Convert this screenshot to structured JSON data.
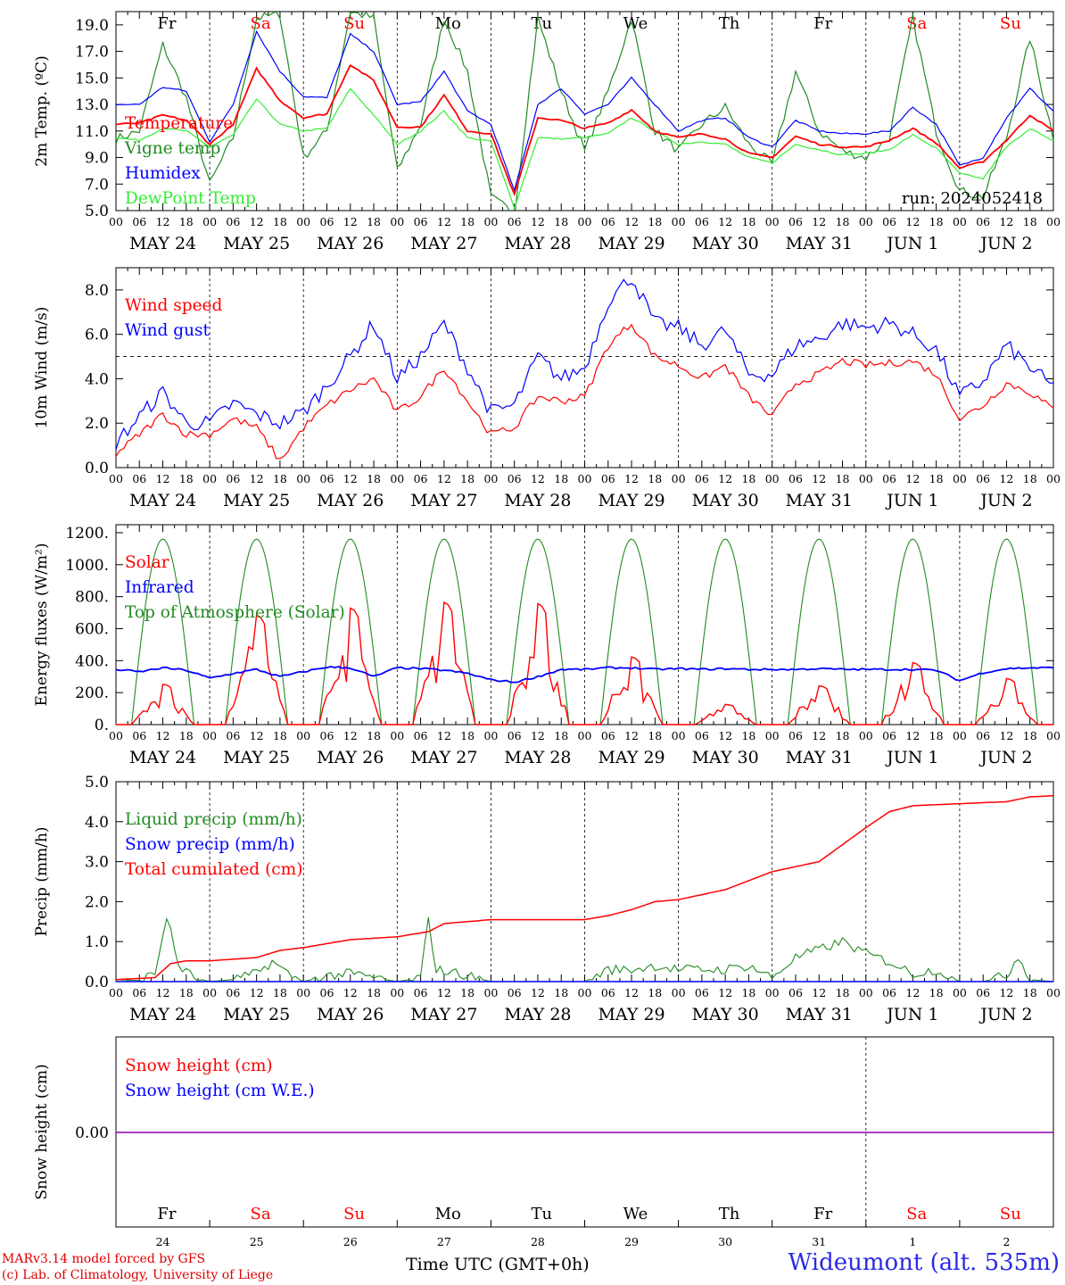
{
  "colors": {
    "red": "#ff0000",
    "green": "#228b22",
    "blue": "#0000ff",
    "lightgreen": "#33ee33",
    "purple": "#8800aa",
    "daySat": "#ff0000",
    "dayWeek": "#000000"
  },
  "day_names": [
    "Fr",
    "Sa",
    "Su",
    "Mo",
    "Tu",
    "We",
    "Th",
    "Fr",
    "Sa",
    "Su"
  ],
  "weekend_idx": [
    1,
    2,
    8,
    9
  ],
  "date_labels": [
    "MAY 24",
    "MAY 25",
    "MAY 26",
    "MAY 27",
    "MAY 28",
    "MAY 29",
    "MAY 30",
    "MAY 31",
    "JUN  1",
    "JUN  2"
  ],
  "hour_labels": [
    "00",
    "06",
    "12",
    "18"
  ],
  "day_numbers": [
    "24",
    "25",
    "26",
    "27",
    "28",
    "29",
    "30",
    "31",
    "1",
    "2"
  ],
  "run_label": "run: 2024052418",
  "time_axis_label": "Time UTC (GMT+0h)",
  "credits": [
    "MARv3.14 model forced by GFS",
    "(c) Lab. of Climatology, University of Liege"
  ],
  "station": "Wideumont (alt. 535m)",
  "chart_data": [
    {
      "type": "line",
      "ylabel": "2m Temp. (ºC)",
      "ylim": [
        5,
        20
      ],
      "yticks": [
        "5.0",
        "7.0",
        "9.0",
        "11.0",
        "13.0",
        "15.0",
        "17.0",
        "19.0"
      ],
      "x_unit": "hours since 2024-05-24 00 UTC",
      "series": [
        {
          "name": "Temperature",
          "color": "red",
          "x": [
            0,
            6,
            12,
            18,
            24,
            30,
            36,
            42,
            48,
            54,
            60,
            66,
            72,
            78,
            84,
            90,
            96,
            102,
            108,
            114,
            120,
            126,
            132,
            138,
            144,
            150,
            156,
            162,
            168,
            174,
            180,
            186,
            192,
            198,
            204,
            210,
            216,
            222,
            228,
            234,
            240
          ],
          "y": [
            11.5,
            11.6,
            12.2,
            11.8,
            10.0,
            11.5,
            15.7,
            13.3,
            12.0,
            12.3,
            16.0,
            14.8,
            11.3,
            11.3,
            13.7,
            11.0,
            10.8,
            6.2,
            12.0,
            11.8,
            11.2,
            11.6,
            12.6,
            11.0,
            10.5,
            10.8,
            10.4,
            9.3,
            9.0,
            10.6,
            10.0,
            9.8,
            9.8,
            10.3,
            11.2,
            10.1,
            8.2,
            8.7,
            10.3,
            12.2,
            11.0
          ]
        },
        {
          "name": "Vigne temp",
          "color": "green",
          "x": [
            0,
            6,
            12,
            18,
            24,
            30,
            36,
            42,
            48,
            54,
            60,
            66,
            72,
            78,
            84,
            90,
            96,
            102,
            108,
            114,
            120,
            126,
            132,
            138,
            144,
            150,
            156,
            162,
            168,
            174,
            180,
            186,
            192,
            198,
            204,
            210,
            216,
            222,
            228,
            234,
            240
          ],
          "y": [
            10.4,
            11.0,
            17.5,
            13.5,
            7.0,
            10.5,
            19.5,
            19.8,
            9.0,
            11.0,
            20.0,
            19.5,
            8.0,
            11.5,
            19.5,
            15.5,
            6.0,
            4.8,
            19.5,
            14.0,
            9.5,
            14.0,
            19.5,
            11.0,
            9.5,
            11.5,
            12.8,
            10.0,
            8.5,
            15.5,
            11.0,
            9.5,
            9.0,
            10.5,
            19.5,
            11.0,
            6.5,
            6.0,
            10.5,
            18.0,
            10.5
          ]
        },
        {
          "name": "Humidex",
          "color": "blue",
          "x": [
            0,
            6,
            12,
            18,
            24,
            30,
            36,
            42,
            48,
            54,
            60,
            66,
            72,
            78,
            84,
            90,
            96,
            102,
            108,
            114,
            120,
            126,
            132,
            138,
            144,
            150,
            156,
            162,
            168,
            174,
            180,
            186,
            192,
            198,
            204,
            210,
            216,
            222,
            228,
            234,
            240
          ],
          "y": [
            13.0,
            13.0,
            14.3,
            14.0,
            10.2,
            13.0,
            18.5,
            15.5,
            13.6,
            13.5,
            18.3,
            17.0,
            13.0,
            13.2,
            15.5,
            12.5,
            11.5,
            6.5,
            13.0,
            14.2,
            12.3,
            13.0,
            15.0,
            13.0,
            11.0,
            11.8,
            12.0,
            10.5,
            9.8,
            11.8,
            11.0,
            10.8,
            10.8,
            11.0,
            12.8,
            11.5,
            8.4,
            9.0,
            12.0,
            14.2,
            12.5
          ]
        },
        {
          "name": "DewPoint Temp",
          "color": "lightgreen",
          "x": [
            0,
            6,
            12,
            18,
            24,
            30,
            36,
            42,
            48,
            54,
            60,
            66,
            72,
            78,
            84,
            90,
            96,
            102,
            108,
            114,
            120,
            126,
            132,
            138,
            144,
            150,
            156,
            162,
            168,
            174,
            180,
            186,
            192,
            198,
            204,
            210,
            216,
            222,
            228,
            234,
            240
          ],
          "y": [
            10.5,
            10.3,
            11.2,
            11.0,
            9.8,
            10.7,
            13.4,
            11.5,
            11.0,
            11.2,
            14.2,
            12.2,
            10.0,
            11.0,
            12.5,
            10.5,
            10.2,
            5.2,
            10.5,
            10.4,
            10.5,
            10.8,
            12.0,
            11.0,
            10.0,
            10.2,
            10.0,
            9.0,
            8.6,
            10.0,
            9.6,
            9.2,
            9.3,
            9.6,
            10.7,
            9.7,
            7.8,
            7.4,
            9.8,
            11.2,
            10.2
          ]
        }
      ]
    },
    {
      "type": "line",
      "ylabel": "10m Wind (m/s)",
      "ylim": [
        0,
        9
      ],
      "yticks": [
        "0.0",
        "2.0",
        "4.0",
        "6.0",
        "8.0"
      ],
      "reference_line": 5.0,
      "series": [
        {
          "name": "Wind speed",
          "color": "red",
          "x": [
            0,
            6,
            12,
            18,
            24,
            30,
            36,
            42,
            48,
            54,
            60,
            66,
            72,
            78,
            84,
            90,
            96,
            102,
            108,
            114,
            120,
            126,
            132,
            138,
            144,
            150,
            156,
            162,
            168,
            174,
            180,
            186,
            192,
            198,
            204,
            210,
            216,
            222,
            228,
            234,
            240
          ],
          "y": [
            0.6,
            1.5,
            2.4,
            1.5,
            1.5,
            2.2,
            1.8,
            0.3,
            1.8,
            2.8,
            3.5,
            4.0,
            2.5,
            3.2,
            4.5,
            3.0,
            1.5,
            1.8,
            3.2,
            3.0,
            3.2,
            5.5,
            6.5,
            5.0,
            4.6,
            4.0,
            4.6,
            3.2,
            2.3,
            3.8,
            4.2,
            4.8,
            4.6,
            4.7,
            4.8,
            4.2,
            2.2,
            2.8,
            3.8,
            3.4,
            2.6
          ]
        },
        {
          "name": "Wind gust",
          "color": "blue",
          "x": [
            0,
            6,
            12,
            18,
            24,
            30,
            36,
            42,
            48,
            54,
            60,
            66,
            72,
            78,
            84,
            90,
            96,
            102,
            108,
            114,
            120,
            126,
            132,
            138,
            144,
            150,
            156,
            162,
            168,
            174,
            180,
            186,
            192,
            198,
            204,
            210,
            216,
            222,
            228,
            234,
            240
          ],
          "y": [
            1.1,
            2.3,
            3.4,
            2.0,
            2.0,
            2.9,
            2.4,
            2.0,
            2.5,
            3.7,
            5.0,
            6.5,
            4.0,
            5.0,
            6.5,
            4.5,
            2.5,
            2.8,
            5.0,
            4.0,
            4.5,
            7.5,
            8.6,
            6.5,
            6.3,
            5.5,
            6.2,
            4.2,
            4.2,
            5.5,
            5.8,
            6.5,
            6.3,
            6.5,
            6.0,
            5.3,
            3.2,
            3.9,
            5.5,
            4.5,
            3.6
          ]
        }
      ]
    },
    {
      "type": "line",
      "ylabel": "Energy fluxes (W/m²)",
      "ylim": [
        0,
        1250
      ],
      "yticks": [
        "0.",
        "200.",
        "400.",
        "600.",
        "800.",
        "1000.",
        "1200."
      ],
      "series": [
        {
          "name": "Solar",
          "color": "red",
          "peaks": [
            280,
            760,
            810,
            850,
            840,
            470,
            140,
            270,
            430,
            320
          ]
        },
        {
          "name": "Infrared",
          "color": "blue",
          "x": [
            0,
            6,
            12,
            18,
            24,
            30,
            36,
            42,
            48,
            54,
            60,
            66,
            72,
            78,
            84,
            90,
            96,
            102,
            108,
            114,
            120,
            126,
            132,
            138,
            144,
            150,
            156,
            162,
            168,
            174,
            180,
            186,
            192,
            198,
            204,
            210,
            216,
            222,
            228,
            234,
            240
          ],
          "y": [
            345,
            330,
            355,
            340,
            290,
            320,
            345,
            300,
            330,
            360,
            355,
            300,
            355,
            350,
            340,
            320,
            280,
            265,
            300,
            345,
            345,
            355,
            355,
            345,
            350,
            345,
            350,
            345,
            345,
            345,
            350,
            345,
            345,
            345,
            345,
            340,
            275,
            325,
            350,
            355,
            355
          ]
        },
        {
          "name": "Top of Atmosphere (Solar)",
          "color": "green",
          "peak": 1160
        }
      ]
    },
    {
      "type": "line",
      "ylabel": "Precip (mm/h)",
      "ylim": [
        0,
        5
      ],
      "yticks": [
        "0.0",
        "1.0",
        "2.0",
        "3.0",
        "4.0",
        "5.0"
      ],
      "series": [
        {
          "name": "Liquid precip (mm/h)",
          "color": "green",
          "x": [
            0,
            6,
            10,
            13,
            16,
            20,
            24,
            30,
            36,
            40,
            44,
            48,
            54,
            60,
            66,
            72,
            78,
            80,
            82,
            88,
            96,
            114,
            120,
            126,
            132,
            138,
            144,
            150,
            156,
            162,
            168,
            174,
            180,
            186,
            192,
            198,
            204,
            210,
            216,
            222,
            228,
            231,
            234,
            240
          ],
          "y": [
            0.05,
            0.03,
            0.2,
            1.65,
            0.4,
            0.1,
            0.0,
            0.05,
            0.2,
            0.5,
            0.2,
            0.0,
            0.15,
            0.2,
            0.1,
            0.0,
            0.1,
            1.55,
            0.3,
            0.2,
            0.0,
            0.0,
            0.0,
            0.3,
            0.3,
            0.4,
            0.3,
            0.3,
            0.3,
            0.4,
            0.1,
            0.6,
            0.8,
            1.0,
            0.7,
            0.5,
            0.2,
            0.3,
            0.0,
            0.0,
            0.15,
            0.65,
            0.05,
            0.0
          ]
        },
        {
          "name": "Snow precip (mm/h)",
          "color": "blue",
          "x": [
            0,
            240
          ],
          "y": [
            0.0,
            0.0
          ]
        },
        {
          "name": "Total cumulated (cm)",
          "color": "red",
          "x": [
            0,
            10,
            14,
            18,
            24,
            36,
            42,
            48,
            60,
            72,
            80,
            84,
            96,
            120,
            126,
            132,
            138,
            144,
            156,
            168,
            180,
            192,
            198,
            204,
            216,
            228,
            234,
            240
          ],
          "y": [
            0.05,
            0.1,
            0.45,
            0.52,
            0.52,
            0.6,
            0.78,
            0.85,
            1.05,
            1.12,
            1.25,
            1.45,
            1.55,
            1.55,
            1.65,
            1.8,
            2.0,
            2.05,
            2.3,
            2.75,
            3.0,
            3.85,
            4.25,
            4.4,
            4.45,
            4.5,
            4.62,
            4.65
          ]
        }
      ]
    },
    {
      "type": "line",
      "ylabel": "Snow height (cm)",
      "yticks": [
        "0.00"
      ],
      "series": [
        {
          "name": "Snow height (cm)",
          "color": "red",
          "x": [
            0,
            240
          ],
          "y": [
            0,
            0
          ]
        },
        {
          "name": "Snow height (cm W.E.)",
          "color": "blue",
          "x": [
            0,
            240
          ],
          "y": [
            0,
            0
          ]
        }
      ]
    }
  ]
}
